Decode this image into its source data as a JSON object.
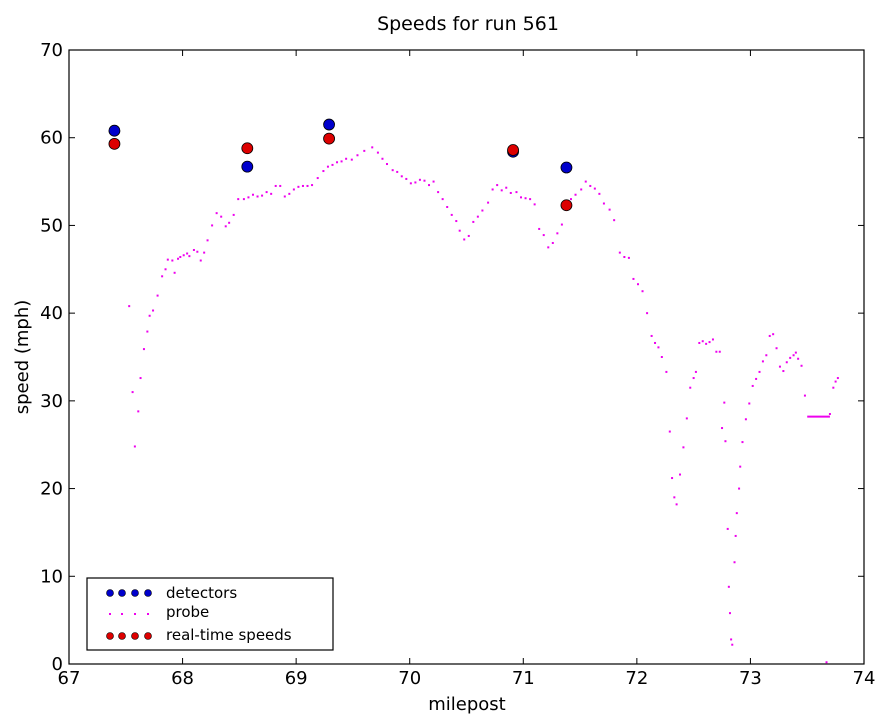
{
  "chart_data": {
    "type": "scatter",
    "title": "Speeds for run 561",
    "xlabel": "milepost",
    "ylabel": "speed (mph)",
    "xlim": [
      67,
      74
    ],
    "ylim": [
      0,
      70
    ],
    "xticks": [
      "67",
      "68",
      "69",
      "70",
      "71",
      "72",
      "73",
      "74"
    ],
    "yticks": [
      "0",
      "10",
      "20",
      "30",
      "40",
      "50",
      "60",
      "70"
    ],
    "grid": false,
    "legend_position": "lower-left",
    "series": [
      {
        "name": "detectors",
        "color": "#0000cc",
        "marker": "circle",
        "points": [
          [
            67.4,
            60.8
          ],
          [
            68.57,
            56.7
          ],
          [
            69.29,
            61.5
          ],
          [
            70.91,
            58.4
          ],
          [
            71.38,
            56.6
          ]
        ]
      },
      {
        "name": "probe",
        "color": "#ee00ee",
        "marker": "dot",
        "points": [
          [
            67.53,
            40.8
          ],
          [
            67.56,
            31.0
          ],
          [
            67.58,
            24.8
          ],
          [
            67.61,
            28.8
          ],
          [
            67.63,
            32.6
          ],
          [
            67.66,
            35.9
          ],
          [
            67.69,
            37.9
          ],
          [
            67.71,
            39.7
          ],
          [
            67.74,
            40.3
          ],
          [
            67.78,
            42.0
          ],
          [
            67.82,
            44.2
          ],
          [
            67.85,
            45.0
          ],
          [
            67.87,
            46.1
          ],
          [
            67.91,
            46.0
          ],
          [
            67.93,
            44.6
          ],
          [
            67.96,
            46.2
          ],
          [
            67.98,
            46.4
          ],
          [
            68.01,
            46.6
          ],
          [
            68.04,
            46.8
          ],
          [
            68.06,
            46.5
          ],
          [
            68.1,
            47.2
          ],
          [
            68.13,
            47.0
          ],
          [
            68.16,
            46.0
          ],
          [
            68.19,
            46.9
          ],
          [
            68.22,
            48.3
          ],
          [
            68.26,
            50.0
          ],
          [
            68.3,
            51.4
          ],
          [
            68.34,
            51.0
          ],
          [
            68.38,
            49.9
          ],
          [
            68.41,
            50.3
          ],
          [
            68.45,
            51.2
          ],
          [
            68.49,
            53.0
          ],
          [
            68.54,
            53.0
          ],
          [
            68.58,
            53.2
          ],
          [
            68.62,
            53.5
          ],
          [
            68.66,
            53.3
          ],
          [
            68.7,
            53.4
          ],
          [
            68.74,
            53.8
          ],
          [
            68.78,
            53.6
          ],
          [
            68.82,
            54.5
          ],
          [
            68.86,
            54.5
          ],
          [
            68.9,
            53.3
          ],
          [
            68.94,
            53.6
          ],
          [
            68.98,
            54.1
          ],
          [
            69.02,
            54.4
          ],
          [
            69.06,
            54.5
          ],
          [
            69.1,
            54.5
          ],
          [
            69.14,
            54.6
          ],
          [
            69.19,
            55.4
          ],
          [
            69.24,
            56.2
          ],
          [
            69.28,
            56.7
          ],
          [
            69.32,
            56.9
          ],
          [
            69.36,
            57.2
          ],
          [
            69.4,
            57.3
          ],
          [
            69.44,
            57.6
          ],
          [
            69.49,
            57.5
          ],
          [
            69.54,
            58.0
          ],
          [
            69.6,
            58.5
          ],
          [
            69.67,
            58.9
          ],
          [
            69.72,
            58.3
          ],
          [
            69.76,
            57.6
          ],
          [
            69.8,
            57.0
          ],
          [
            69.85,
            56.3
          ],
          [
            69.89,
            56.1
          ],
          [
            69.93,
            55.6
          ],
          [
            69.97,
            55.3
          ],
          [
            70.01,
            54.8
          ],
          [
            70.05,
            54.9
          ],
          [
            70.09,
            55.2
          ],
          [
            70.13,
            55.1
          ],
          [
            70.17,
            54.6
          ],
          [
            70.21,
            55.0
          ],
          [
            70.25,
            53.8
          ],
          [
            70.29,
            53.0
          ],
          [
            70.33,
            52.1
          ],
          [
            70.37,
            51.2
          ],
          [
            70.41,
            50.5
          ],
          [
            70.44,
            49.4
          ],
          [
            70.48,
            48.4
          ],
          [
            70.52,
            48.8
          ],
          [
            70.56,
            50.4
          ],
          [
            70.6,
            51.0
          ],
          [
            70.64,
            51.7
          ],
          [
            70.69,
            52.6
          ],
          [
            70.73,
            54.1
          ],
          [
            70.77,
            54.6
          ],
          [
            70.81,
            54.0
          ],
          [
            70.85,
            54.3
          ],
          [
            70.89,
            53.7
          ],
          [
            70.94,
            53.8
          ],
          [
            70.98,
            53.2
          ],
          [
            71.02,
            53.1
          ],
          [
            71.06,
            53.0
          ],
          [
            71.1,
            52.4
          ],
          [
            71.14,
            49.6
          ],
          [
            71.18,
            48.9
          ],
          [
            71.22,
            47.5
          ],
          [
            71.26,
            48.0
          ],
          [
            71.3,
            49.1
          ],
          [
            71.34,
            50.1
          ],
          [
            71.38,
            52.5
          ],
          [
            71.42,
            53.0
          ],
          [
            71.46,
            53.5
          ],
          [
            71.51,
            54.1
          ],
          [
            71.55,
            55.0
          ],
          [
            71.59,
            54.5
          ],
          [
            71.63,
            54.2
          ],
          [
            71.67,
            53.6
          ],
          [
            71.71,
            52.5
          ],
          [
            71.76,
            51.8
          ],
          [
            71.8,
            50.6
          ],
          [
            71.85,
            46.9
          ],
          [
            71.89,
            46.4
          ],
          [
            71.93,
            46.3
          ],
          [
            71.97,
            43.9
          ],
          [
            72.01,
            43.3
          ],
          [
            72.05,
            42.5
          ],
          [
            72.09,
            40.0
          ],
          [
            72.13,
            37.4
          ],
          [
            72.16,
            36.6
          ],
          [
            72.19,
            36.1
          ],
          [
            72.22,
            35.0
          ],
          [
            72.26,
            33.3
          ],
          [
            72.29,
            26.5
          ],
          [
            72.31,
            21.2
          ],
          [
            72.33,
            19.0
          ],
          [
            72.35,
            18.2
          ],
          [
            72.38,
            21.6
          ],
          [
            72.41,
            24.7
          ],
          [
            72.44,
            28.0
          ],
          [
            72.47,
            31.5
          ],
          [
            72.5,
            32.6
          ],
          [
            72.52,
            33.3
          ],
          [
            72.55,
            36.6
          ],
          [
            72.58,
            36.8
          ],
          [
            72.61,
            36.5
          ],
          [
            72.64,
            36.7
          ],
          [
            72.67,
            37.0
          ],
          [
            72.7,
            35.6
          ],
          [
            72.73,
            35.6
          ],
          [
            72.75,
            26.9
          ],
          [
            72.77,
            29.8
          ],
          [
            72.78,
            25.4
          ],
          [
            72.8,
            15.4
          ],
          [
            72.81,
            8.8
          ],
          [
            72.82,
            5.8
          ],
          [
            72.83,
            2.8
          ],
          [
            72.84,
            2.2
          ],
          [
            72.86,
            11.6
          ],
          [
            72.87,
            14.6
          ],
          [
            72.88,
            17.2
          ],
          [
            72.9,
            20.0
          ],
          [
            72.91,
            22.5
          ],
          [
            72.93,
            25.3
          ],
          [
            72.96,
            27.9
          ],
          [
            72.99,
            29.7
          ],
          [
            73.02,
            31.7
          ],
          [
            73.05,
            32.5
          ],
          [
            73.08,
            33.3
          ],
          [
            73.11,
            34.5
          ],
          [
            73.14,
            35.2
          ],
          [
            73.17,
            37.4
          ],
          [
            73.2,
            37.6
          ],
          [
            73.23,
            36.0
          ],
          [
            73.26,
            33.9
          ],
          [
            73.29,
            33.4
          ],
          [
            73.32,
            34.4
          ],
          [
            73.35,
            34.9
          ],
          [
            73.38,
            35.2
          ],
          [
            73.4,
            35.5
          ],
          [
            73.42,
            34.8
          ],
          [
            73.45,
            34.0
          ],
          [
            73.48,
            30.6
          ],
          [
            73.7,
            28.5
          ],
          [
            73.73,
            31.5
          ],
          [
            73.75,
            32.2
          ],
          [
            73.77,
            32.6
          ],
          [
            73.67,
            0.2
          ]
        ],
        "flat_segment": {
          "x": [
            73.5,
            73.7
          ],
          "y": 28.2
        }
      },
      {
        "name": "real-time speeds",
        "color": "#dd0000",
        "marker": "circle",
        "points": [
          [
            67.4,
            59.3
          ],
          [
            68.57,
            58.8
          ],
          [
            69.29,
            59.9
          ],
          [
            70.91,
            58.6
          ],
          [
            71.38,
            52.3
          ]
        ]
      }
    ]
  }
}
